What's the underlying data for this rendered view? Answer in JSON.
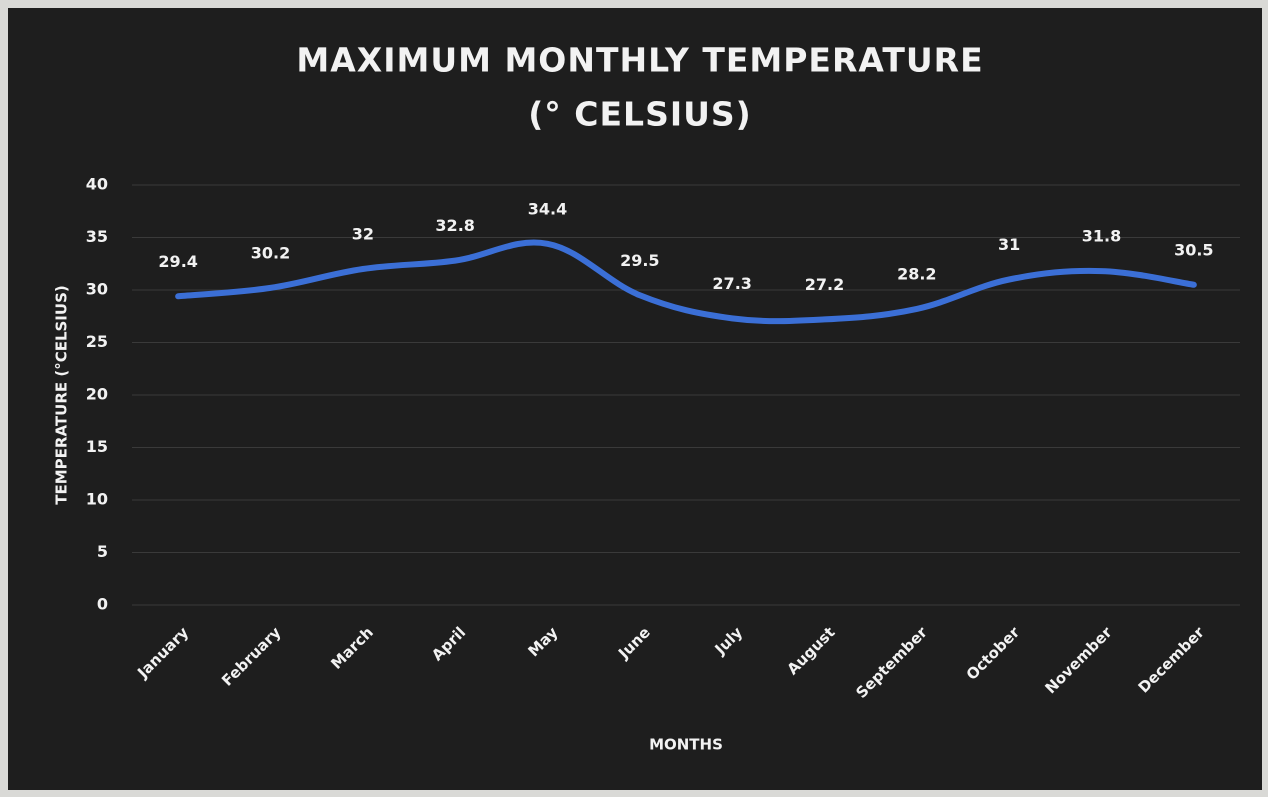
{
  "chart_data": {
    "type": "line",
    "title": [
      "MAXIMUM MONTHLY TEMPERATURE",
      "(° CELSIUS)"
    ],
    "x_label": "MONTHS",
    "y_label": "TEMPERATURE (°CELSIUS)",
    "categories": [
      "January",
      "February",
      "March",
      "April",
      "May",
      "June",
      "July",
      "August",
      "September",
      "October",
      "November",
      "December"
    ],
    "series": [
      {
        "name": "Temperature",
        "color": "#3b6fd6",
        "values": [
          29.4,
          30.2,
          32,
          32.8,
          34.4,
          29.5,
          27.3,
          27.2,
          28.2,
          31,
          31.8,
          30.5
        ]
      }
    ],
    "ylim": [
      0,
      40
    ],
    "yticks": [
      0,
      5,
      10,
      15,
      20,
      25,
      30,
      35,
      40
    ],
    "grid": true
  }
}
